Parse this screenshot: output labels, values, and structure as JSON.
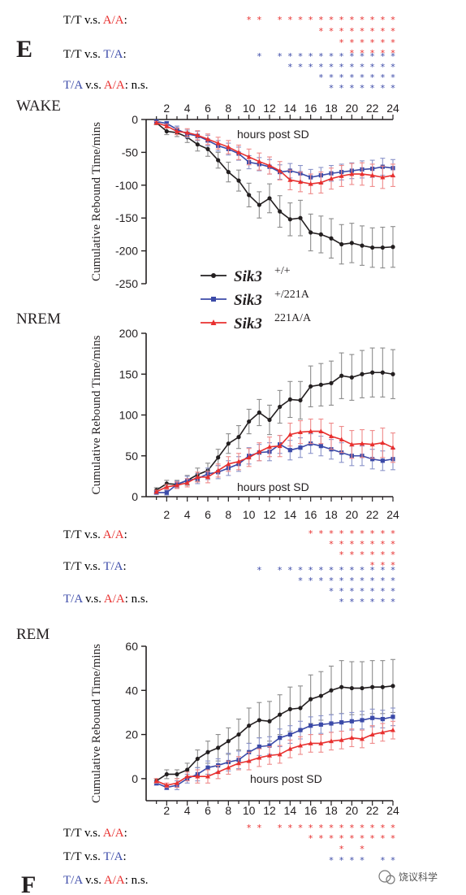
{
  "letters": {
    "e": "E",
    "f": "F"
  },
  "comparisons": {
    "tt_aa": {
      "left": "T/T v.s. ",
      "right": "A/A",
      "colon": ":"
    },
    "tt_ta": {
      "left": "T/T v.s. ",
      "right": "T/A",
      "colon": ":"
    },
    "ta_aa": {
      "left": "T/A",
      "mid": " v.s. ",
      "right": "A/A",
      "tail": ": n.s."
    }
  },
  "colors": {
    "black": "#231f20",
    "blue": "#3b4aa8",
    "red": "#e8302f",
    "err_black": "#8c8c8c",
    "err_blue": "#8a93c9",
    "err_red": "#ef8a8a"
  },
  "legend": {
    "label": "Sik3",
    "entries": [
      {
        "sup": "+/+",
        "color": "#231f20",
        "marker": "circle"
      },
      {
        "sup": "+/221A",
        "color": "#3b4aa8",
        "marker": "square"
      },
      {
        "sup": "221A/A",
        "color": "#e8302f",
        "marker": "triangle"
      }
    ]
  },
  "watermark": "饶议科学",
  "chart_data": [
    {
      "type": "line",
      "panel_label": "WAKE",
      "xlabel": "hours post SD",
      "ylabel": "Cumulative Rebound Time/mins",
      "xlim": [
        0,
        24
      ],
      "ylim": [
        -250,
        0
      ],
      "x_ticks": [
        2,
        4,
        6,
        8,
        10,
        12,
        14,
        16,
        18,
        20,
        22,
        24
      ],
      "y_ticks": [
        0,
        -50,
        -100,
        -150,
        -200,
        -250
      ],
      "x_axis_position": "top",
      "x": [
        1,
        2,
        3,
        4,
        5,
        6,
        7,
        8,
        9,
        10,
        11,
        12,
        13,
        14,
        15,
        16,
        17,
        18,
        19,
        20,
        21,
        22,
        23,
        24
      ],
      "series": [
        {
          "name": "+/+",
          "values": [
            -5,
            -18,
            -20,
            -27,
            -38,
            -45,
            -62,
            -80,
            -93,
            -115,
            -130,
            -120,
            -140,
            -152,
            -150,
            -172,
            -175,
            -181,
            -190,
            -188,
            -192,
            -195,
            -195,
            -194
          ],
          "errors": [
            3,
            5,
            6,
            8,
            10,
            11,
            12,
            15,
            16,
            18,
            20,
            22,
            24,
            25,
            27,
            28,
            28,
            30,
            30,
            30,
            30,
            30,
            31,
            31
          ]
        },
        {
          "name": "+/221A",
          "values": [
            -3,
            -6,
            -15,
            -22,
            -25,
            -32,
            -40,
            -45,
            -52,
            -65,
            -68,
            -72,
            -80,
            -78,
            -82,
            -88,
            -85,
            -82,
            -80,
            -78,
            -76,
            -75,
            -72,
            -74
          ],
          "errors": [
            2,
            3,
            5,
            6,
            7,
            8,
            8,
            9,
            10,
            10,
            10,
            11,
            11,
            11,
            12,
            12,
            12,
            12,
            12,
            12,
            13,
            13,
            13,
            13
          ]
        },
        {
          "name": "221A/A",
          "values": [
            -5,
            -10,
            -18,
            -20,
            -24,
            -30,
            -36,
            -42,
            -50,
            -57,
            -64,
            -70,
            -78,
            -92,
            -95,
            -98,
            -96,
            -90,
            -86,
            -83,
            -83,
            -85,
            -88,
            -85
          ],
          "errors": [
            2,
            3,
            5,
            6,
            7,
            8,
            9,
            10,
            11,
            12,
            13,
            13,
            14,
            15,
            15,
            15,
            16,
            16,
            16,
            16,
            17,
            17,
            17,
            17
          ]
        }
      ],
      "significance": [
        {
          "comparison": "T/T v.s. A/A",
          "color": "red",
          "rows": [
            [
              10,
              11,
              13,
              14,
              15,
              16,
              17,
              18,
              19,
              20,
              21,
              22,
              23,
              24
            ],
            [
              17,
              18,
              19,
              20,
              21,
              22,
              23,
              24
            ],
            [
              19,
              20,
              21,
              22,
              23,
              24
            ],
            [
              20,
              21,
              22,
              23,
              24
            ]
          ]
        },
        {
          "comparison": "T/T v.s. T/A",
          "color": "blue",
          "rows": [
            [
              11,
              13,
              14,
              15,
              16,
              17,
              18,
              19,
              20,
              21,
              22,
              23,
              24
            ],
            [
              14,
              15,
              16,
              17,
              18,
              19,
              20,
              21,
              22,
              23,
              24
            ],
            [
              17,
              18,
              19,
              20,
              21,
              22,
              23,
              24
            ],
            [
              18,
              19,
              20,
              21,
              22,
              23,
              24
            ]
          ]
        }
      ]
    },
    {
      "type": "line",
      "panel_label": "NREM",
      "xlabel": "hours post SD",
      "ylabel": "Cumulative Rebound Time/mins",
      "xlim": [
        0,
        24
      ],
      "ylim": [
        0,
        200
      ],
      "x_ticks": [
        2,
        4,
        6,
        8,
        10,
        12,
        14,
        16,
        18,
        20,
        22,
        24
      ],
      "y_ticks": [
        0,
        50,
        100,
        150,
        200
      ],
      "x_axis_position": "bottom",
      "x": [
        1,
        2,
        3,
        4,
        5,
        6,
        7,
        8,
        9,
        10,
        11,
        12,
        13,
        14,
        15,
        16,
        17,
        18,
        19,
        20,
        21,
        22,
        23,
        24
      ],
      "series": [
        {
          "name": "+/+",
          "values": [
            8,
            16,
            15,
            20,
            27,
            32,
            48,
            65,
            73,
            92,
            103,
            94,
            110,
            119,
            118,
            135,
            137,
            139,
            148,
            146,
            150,
            152,
            152,
            150
          ],
          "errors": [
            3,
            4,
            5,
            6,
            8,
            9,
            10,
            12,
            14,
            15,
            16,
            18,
            20,
            22,
            23,
            25,
            26,
            27,
            28,
            28,
            29,
            30,
            30,
            30
          ]
        },
        {
          "name": "+/221A",
          "values": [
            5,
            5,
            15,
            20,
            22,
            28,
            30,
            35,
            40,
            50,
            54,
            55,
            64,
            57,
            60,
            65,
            62,
            58,
            54,
            50,
            50,
            46,
            44,
            46
          ],
          "errors": [
            2,
            3,
            4,
            5,
            6,
            7,
            8,
            9,
            9,
            10,
            10,
            11,
            11,
            12,
            12,
            12,
            12,
            12,
            12,
            12,
            12,
            12,
            12,
            13
          ]
        },
        {
          "name": "221A/A",
          "values": [
            6,
            12,
            14,
            17,
            24,
            24,
            32,
            40,
            43,
            48,
            55,
            61,
            62,
            76,
            79,
            80,
            80,
            74,
            70,
            64,
            65,
            64,
            66,
            60
          ],
          "errors": [
            2,
            3,
            4,
            5,
            6,
            7,
            8,
            9,
            10,
            11,
            11,
            12,
            13,
            14,
            14,
            15,
            15,
            16,
            16,
            17,
            17,
            17,
            18,
            18
          ]
        }
      ],
      "significance": [
        {
          "comparison": "T/T v.s. A/A",
          "color": "red",
          "rows": [
            [
              16,
              17,
              18,
              19,
              20,
              21,
              22,
              23,
              24
            ],
            [
              18,
              19,
              20,
              21,
              22,
              23,
              24
            ],
            [
              19,
              20,
              21,
              22,
              23,
              24
            ],
            [
              22,
              23,
              24
            ]
          ]
        },
        {
          "comparison": "T/T v.s. T/A",
          "color": "blue",
          "rows": [
            [
              11,
              13,
              14,
              15,
              16,
              17,
              18,
              19,
              20,
              21,
              22,
              23,
              24
            ],
            [
              15,
              16,
              17,
              18,
              19,
              20,
              21,
              22,
              23,
              24
            ],
            [
              18,
              19,
              20,
              21,
              22,
              23,
              24
            ],
            [
              19,
              20,
              21,
              22,
              23,
              24
            ]
          ]
        }
      ]
    },
    {
      "type": "line",
      "panel_label": "REM",
      "xlabel": "hours post SD",
      "ylabel": "Cumulative Rebound Time/mins",
      "xlim": [
        0,
        24
      ],
      "ylim": [
        -10,
        60
      ],
      "x_ticks": [
        2,
        4,
        6,
        8,
        10,
        12,
        14,
        16,
        18,
        20,
        22,
        24
      ],
      "y_ticks": [
        0,
        20,
        40,
        60
      ],
      "x_axis_position": "bottom",
      "x": [
        1,
        2,
        3,
        4,
        5,
        6,
        7,
        8,
        9,
        10,
        11,
        12,
        13,
        14,
        15,
        16,
        17,
        18,
        19,
        20,
        21,
        22,
        23,
        24
      ],
      "series": [
        {
          "name": "+/+",
          "values": [
            -1,
            2,
            2,
            4,
            9,
            12,
            14,
            17,
            20,
            24,
            26.5,
            26,
            29,
            31.5,
            32,
            36,
            37.5,
            40,
            41.5,
            41,
            41,
            41.5,
            41.5,
            42
          ],
          "errors": [
            1,
            2,
            2,
            3,
            4,
            5,
            6,
            6,
            7,
            8,
            8,
            9,
            9,
            10,
            10,
            11,
            11,
            11,
            12,
            12,
            12,
            12,
            12,
            12
          ]
        },
        {
          "name": "+/221A",
          "values": [
            -2,
            -4,
            -3,
            0,
            2,
            5,
            6,
            7.5,
            8.5,
            12,
            14.5,
            15,
            18.5,
            20,
            22,
            24,
            24.5,
            25,
            25.5,
            26,
            26.5,
            27.5,
            27,
            28
          ],
          "errors": [
            1,
            1,
            2,
            2,
            3,
            3,
            3,
            4,
            4,
            4,
            4,
            4,
            4,
            4,
            4,
            4,
            4,
            4,
            4,
            4,
            4,
            4,
            4,
            4
          ]
        },
        {
          "name": "221A/A",
          "values": [
            -1,
            -3,
            -2,
            1,
            1,
            1,
            3,
            5,
            7,
            8,
            9.5,
            10.5,
            11,
            13.5,
            15,
            16,
            16,
            17,
            17.5,
            18.5,
            18,
            20,
            21,
            22
          ],
          "errors": [
            1,
            1,
            2,
            2,
            3,
            3,
            3,
            3,
            3,
            4,
            4,
            4,
            4,
            4,
            4,
            4,
            4,
            4,
            4,
            4,
            4,
            4,
            4,
            4
          ]
        }
      ],
      "significance": [
        {
          "comparison": "T/T v.s. A/A",
          "color": "red",
          "rows": [
            [
              10,
              11,
              13,
              14,
              15,
              16,
              17,
              18,
              19,
              20,
              21,
              22,
              23,
              24
            ],
            [
              16,
              17,
              18,
              19,
              20,
              21,
              22,
              23,
              24
            ],
            [
              19,
              21
            ]
          ]
        },
        {
          "comparison": "T/T v.s. T/A",
          "color": "blue",
          "rows": [
            [
              18,
              19,
              20,
              21,
              23,
              24
            ]
          ]
        }
      ]
    }
  ]
}
